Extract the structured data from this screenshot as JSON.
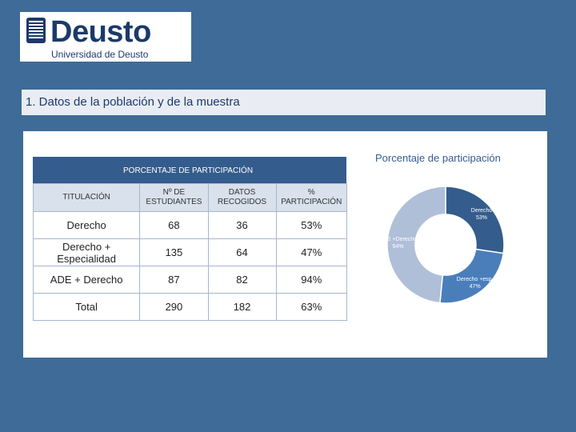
{
  "logo": {
    "title": "Deusto",
    "subtitle": "Universidad de Deusto"
  },
  "section": {
    "title": "1. Datos de la población y de la muestra"
  },
  "table": {
    "title": "PORCENTAJE DE PARTICIPACIÓN",
    "columns": [
      "TITULACIÓN",
      "Nº DE ESTUDIANTES",
      "DATOS RECOGIDOS",
      "% PARTICIPACIÓN"
    ],
    "rows": [
      [
        "Derecho",
        "68",
        "36",
        "53%"
      ],
      [
        "Derecho + Especialidad",
        "135",
        "64",
        "47%"
      ],
      [
        "ADE + Derecho",
        "87",
        "82",
        "94%"
      ],
      [
        "Total",
        "290",
        "182",
        "63%"
      ]
    ]
  },
  "chart_data": {
    "type": "pie",
    "title": "Porcentaje de participación",
    "slices": [
      {
        "label": "Derecho",
        "value_label": "53%",
        "value": 53,
        "color": "#345c8c"
      },
      {
        "label": "Derecho +esp.",
        "value_label": "47%",
        "value": 47,
        "color": "#4a7ebb"
      },
      {
        "label": "ADE +Derecho",
        "value_label": "94%",
        "value": 94,
        "color": "#b0bfd8"
      }
    ],
    "donut": true,
    "legend": "none"
  },
  "colors": {
    "background": "#3e6b97",
    "header": "#345c8c",
    "accent_dark": "#1b3a6b"
  }
}
